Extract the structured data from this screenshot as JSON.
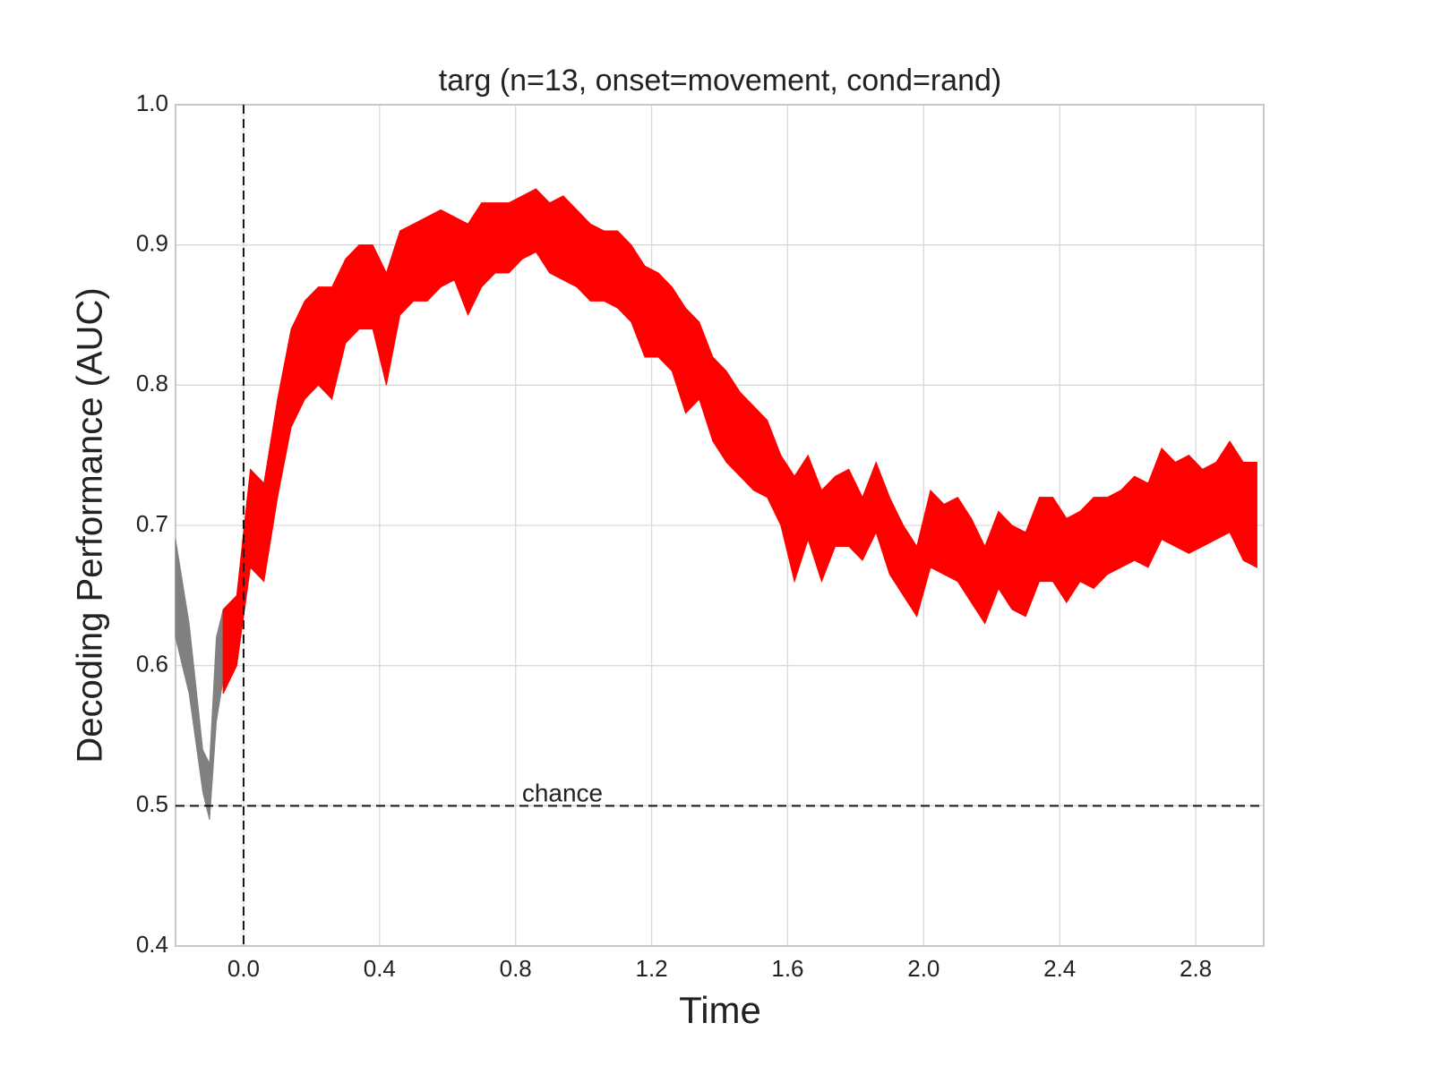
{
  "chart_data": {
    "type": "band",
    "title": "targ (n=13, onset=movement, cond=rand)",
    "xlabel": "Time",
    "ylabel": "Decoding Performance (AUC)",
    "xlim": [
      -0.2,
      3.0
    ],
    "ylim": [
      0.4,
      1.0
    ],
    "xticks": [
      {
        "value": 0,
        "label": "0.0"
      },
      0.4,
      0.8,
      1.2,
      1.6,
      {
        "value": 2,
        "label": "2.0"
      },
      2.4,
      2.8
    ],
    "yticks": [
      0.4,
      0.5,
      0.6,
      0.7,
      0.8,
      0.9,
      {
        "value": 1,
        "label": "1.0"
      }
    ],
    "grid": true,
    "vline": 0,
    "hline": 0.5,
    "hline_label": "chance",
    "series": [
      {
        "color": "#808080",
        "x": [
          -0.2,
          -0.16,
          -0.12,
          -0.1,
          -0.08,
          -0.06
        ],
        "upper": [
          0.69,
          0.63,
          0.54,
          0.53,
          0.62,
          0.64
        ],
        "lower": [
          0.62,
          0.58,
          0.51,
          0.49,
          0.56,
          0.59
        ]
      },
      {
        "color": "#ff0000",
        "x": [
          -0.06,
          -0.02,
          0.02,
          0.06,
          0.1,
          0.14,
          0.18,
          0.22,
          0.26,
          0.3,
          0.34,
          0.38,
          0.42,
          0.46,
          0.5,
          0.54,
          0.58,
          0.62,
          0.66,
          0.7,
          0.74,
          0.78,
          0.82,
          0.86,
          0.9,
          0.94,
          0.98,
          1.02,
          1.06,
          1.1,
          1.14,
          1.18,
          1.22,
          1.26,
          1.3,
          1.34,
          1.38,
          1.42,
          1.46,
          1.5,
          1.54,
          1.58,
          1.62,
          1.66,
          1.7,
          1.74,
          1.78,
          1.82,
          1.86,
          1.9,
          1.94,
          1.98,
          2.02,
          2.06,
          2.1,
          2.14,
          2.18,
          2.22,
          2.26,
          2.3,
          2.34,
          2.38,
          2.42,
          2.46,
          2.5,
          2.54,
          2.58,
          2.62,
          2.66,
          2.7,
          2.74,
          2.78,
          2.82,
          2.86,
          2.9,
          2.94,
          2.98
        ],
        "upper": [
          0.64,
          0.65,
          0.74,
          0.73,
          0.79,
          0.84,
          0.86,
          0.87,
          0.87,
          0.89,
          0.9,
          0.9,
          0.88,
          0.91,
          0.915,
          0.92,
          0.925,
          0.92,
          0.915,
          0.93,
          0.93,
          0.93,
          0.935,
          0.94,
          0.93,
          0.935,
          0.925,
          0.915,
          0.91,
          0.91,
          0.9,
          0.885,
          0.88,
          0.87,
          0.855,
          0.845,
          0.82,
          0.81,
          0.795,
          0.785,
          0.775,
          0.75,
          0.735,
          0.75,
          0.725,
          0.735,
          0.74,
          0.72,
          0.745,
          0.72,
          0.7,
          0.685,
          0.725,
          0.715,
          0.72,
          0.705,
          0.685,
          0.71,
          0.7,
          0.695,
          0.72,
          0.72,
          0.705,
          0.71,
          0.72,
          0.72,
          0.725,
          0.735,
          0.73,
          0.755,
          0.745,
          0.75,
          0.74,
          0.745,
          0.76,
          0.745,
          0.745
        ],
        "lower": [
          0.58,
          0.6,
          0.67,
          0.66,
          0.72,
          0.77,
          0.79,
          0.8,
          0.79,
          0.83,
          0.84,
          0.84,
          0.8,
          0.85,
          0.86,
          0.86,
          0.87,
          0.875,
          0.85,
          0.87,
          0.88,
          0.88,
          0.89,
          0.895,
          0.88,
          0.875,
          0.87,
          0.86,
          0.86,
          0.855,
          0.845,
          0.82,
          0.82,
          0.81,
          0.78,
          0.79,
          0.76,
          0.745,
          0.735,
          0.725,
          0.72,
          0.7,
          0.66,
          0.69,
          0.66,
          0.685,
          0.685,
          0.675,
          0.695,
          0.665,
          0.65,
          0.635,
          0.67,
          0.665,
          0.66,
          0.645,
          0.63,
          0.655,
          0.64,
          0.635,
          0.66,
          0.66,
          0.645,
          0.66,
          0.655,
          0.665,
          0.67,
          0.675,
          0.67,
          0.69,
          0.685,
          0.68,
          0.685,
          0.69,
          0.695,
          0.675,
          0.67
        ]
      }
    ]
  }
}
